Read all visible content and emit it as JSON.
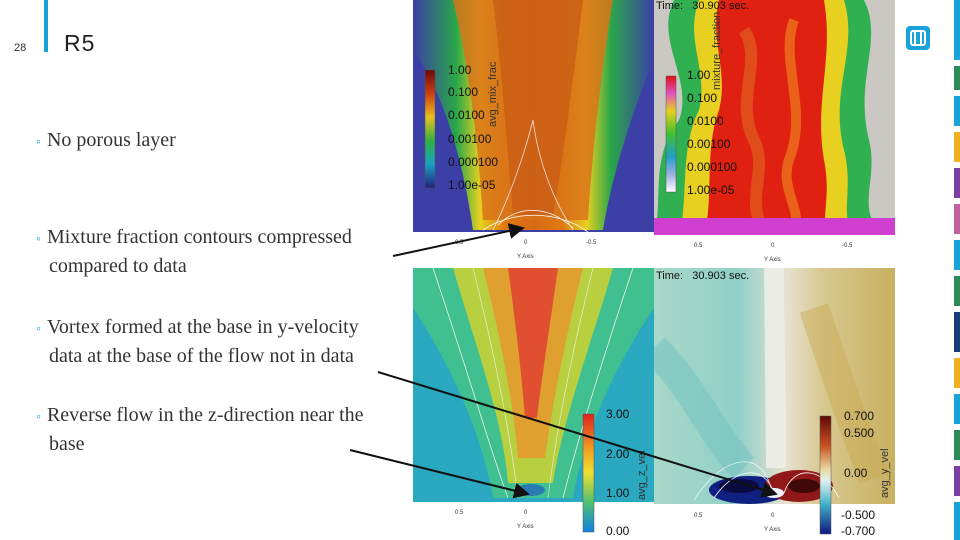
{
  "slide": {
    "number": "28",
    "title": "R5"
  },
  "bullets": [
    {
      "line1": "No porous layer",
      "line2": ""
    },
    {
      "line1": "Mixture fraction contours compressed",
      "line2": "compared to data"
    },
    {
      "line1": "Vortex formed at the base in y-velocity",
      "line2": "data at the base of the flow not in data"
    },
    {
      "line1": "Reverse flow in the z-direction near the",
      "line2": "base"
    }
  ],
  "panels": {
    "top_left": {
      "colorbar_title": "avg_mix_frac",
      "labels": [
        "1.00",
        "0.100",
        "0.0100",
        "0.00100",
        "0.000100",
        "1.00e-05"
      ],
      "axis_title": "Y Axis",
      "ticks": [
        "0.5",
        "0",
        "-0.5"
      ]
    },
    "top_right": {
      "time_prefix": "Time:",
      "time_value": "30.903 sec.",
      "colorbar_title": "mixture_fraction",
      "labels": [
        "1.00",
        "0.100",
        "0.0100",
        "0.00100",
        "0.000100",
        "1.00e-05"
      ],
      "axis_title": "Y Axis",
      "ticks": [
        "0.5",
        "0",
        "-0.5"
      ]
    },
    "bottom_left": {
      "colorbar_title": "avg_z_vel",
      "labels": [
        "3.00",
        "2.00",
        "1.00",
        "0.00"
      ],
      "axis_title": "Y Axis",
      "ticks": [
        "0.5",
        "0"
      ]
    },
    "bottom_right": {
      "time_prefix": "Time:",
      "time_value": "30.903 sec.",
      "colorbar_title": "avg_y_vel",
      "labels": [
        "0.700",
        "0.500",
        "0.00",
        "-0.500",
        "-0.700"
      ],
      "axis_title": "Y Axis",
      "ticks": [
        "0.5",
        "0"
      ]
    }
  },
  "colors": {
    "accent": "#1aa3d9",
    "logo": "#1aa3d9"
  },
  "icons": {
    "logo": "sandia-logo-icon"
  }
}
